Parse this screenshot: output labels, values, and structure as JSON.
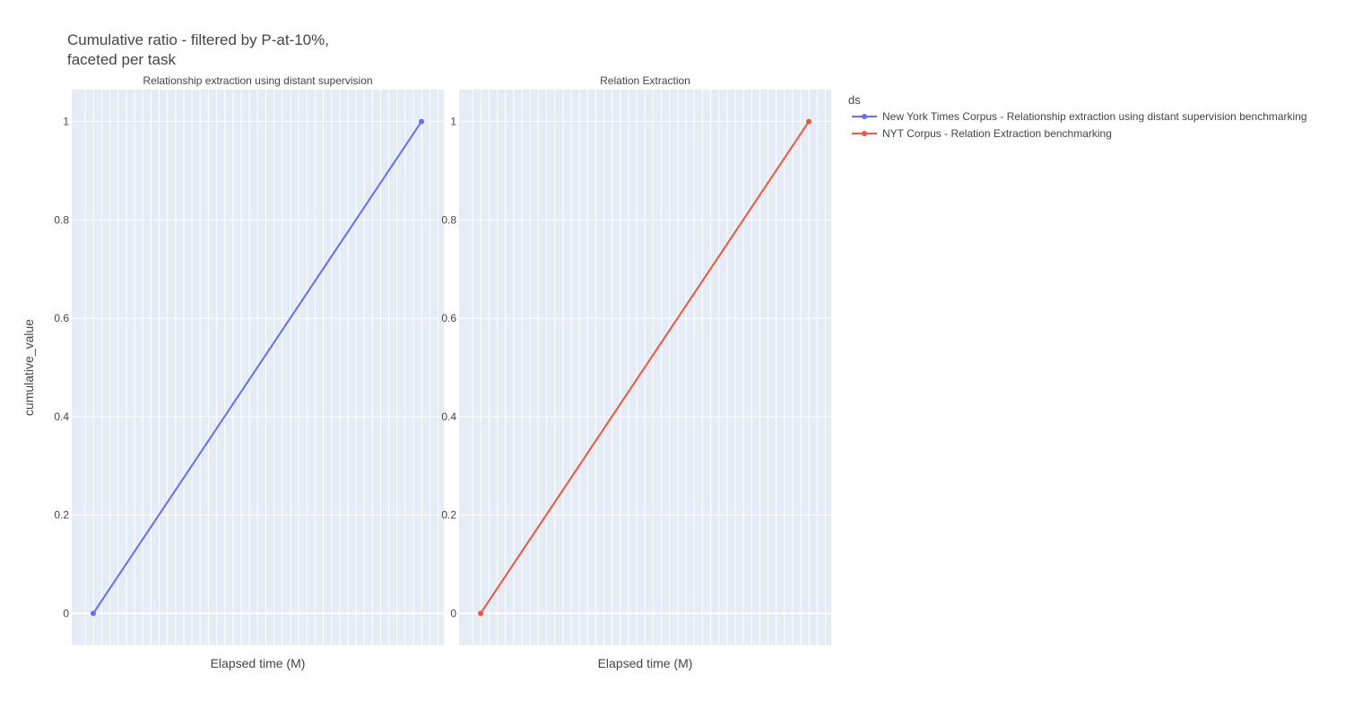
{
  "chart_data": {
    "type": "line",
    "title_lines": [
      "Cumulative ratio - filtered by P-at-10%,",
      "faceted per task"
    ],
    "ylabel": "cumulative_value",
    "ylim": [
      -0.065,
      1.065
    ],
    "yticks": [
      0,
      0.2,
      0.4,
      0.6,
      0.8,
      1
    ],
    "ytick_labels": [
      "0",
      "0.2",
      "0.4",
      "0.6",
      "0.8",
      "1"
    ],
    "grid": true,
    "legend": {
      "title": "ds",
      "placement": "top-right",
      "entries": [
        {
          "name": "New York Times Corpus - Relationship extraction using distant supervision benchmarking",
          "color": "#636efa"
        },
        {
          "name": "NYT Corpus - Relation Extraction benchmarking",
          "color": "#ef553b"
        }
      ]
    },
    "facets": [
      {
        "title": "Relationship extraction using distant supervision",
        "xlabel": "Elapsed time (M)",
        "series": [
          {
            "legend_index": 0,
            "color": "#636efa",
            "x": [
              0,
              1
            ],
            "y": [
              0,
              1
            ]
          }
        ]
      },
      {
        "title": "Relation Extraction",
        "xlabel": "Elapsed time (M)",
        "series": [
          {
            "legend_index": 1,
            "color": "#ef553b",
            "x": [
              0,
              1
            ],
            "y": [
              0,
              1
            ]
          }
        ]
      }
    ]
  }
}
